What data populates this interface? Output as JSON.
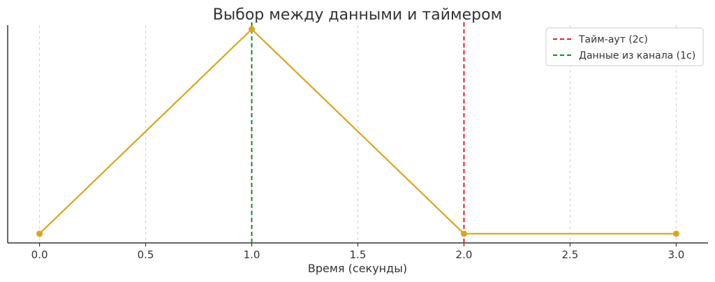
{
  "chart_data": {
    "type": "line",
    "title": "Выбор между данными и таймером",
    "xlabel": "Время (секунды)",
    "ylabel": "",
    "xlim": [
      -0.15,
      3.15
    ],
    "ylim": [
      -0.045,
      1.02
    ],
    "x_ticks": [
      0.0,
      0.5,
      1.0,
      1.5,
      2.0,
      2.5,
      3.0
    ],
    "x_tick_labels": [
      "0.0",
      "0.5",
      "1.0",
      "1.5",
      "2.0",
      "2.5",
      "3.0"
    ],
    "grid": "vertical dashed",
    "legend_position": "top-right",
    "series": [
      {
        "x": [
          0,
          1,
          2,
          3
        ],
        "y": [
          0,
          1,
          0,
          0
        ],
        "color": "#DAA520",
        "marker": "circle"
      }
    ],
    "vlines": [
      {
        "x": 2,
        "name": "Тайм-аут (2с)",
        "color": "#E0202B",
        "style": "dashed"
      },
      {
        "x": 1,
        "name": "Данные из канала (1с)",
        "color": "#178A1E",
        "style": "dashed"
      }
    ]
  }
}
